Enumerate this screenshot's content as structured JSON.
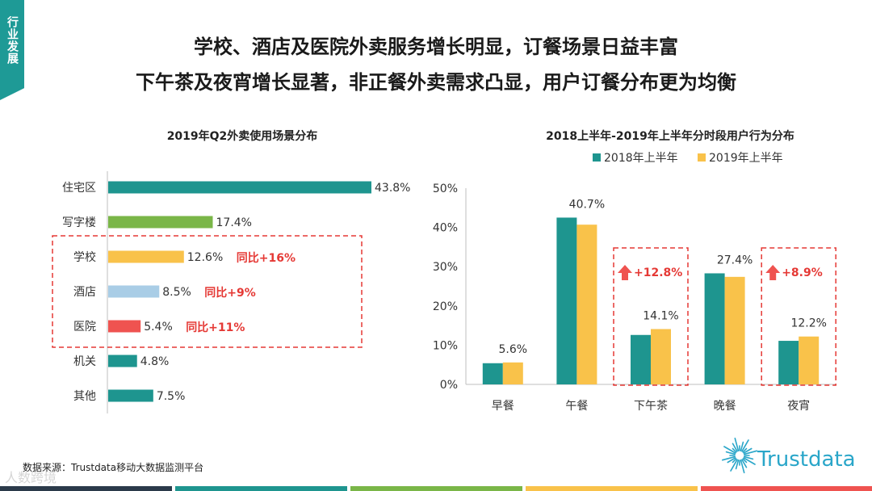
{
  "side_tag": "行业发展",
  "headline": {
    "line1": "学校、酒店及医院外卖服务增长明显，订餐场景日益丰富",
    "line2": "下午茶及夜宵增长显著，非正餐外卖需求凸显，用户订餐分布更为均衡"
  },
  "source": "数据来源：Trustdata移动大数据监测平台",
  "logo_text": "Trustdata",
  "watermark": "人数跨境",
  "colors": {
    "teal": "#1e958f",
    "gold": "#f9c24a",
    "red": "#e53935",
    "dash": "#e53935"
  },
  "chart_data": [
    {
      "type": "bar",
      "orientation": "horizontal",
      "title": "2019年Q2外卖使用场景分布",
      "categories": [
        "住宅区",
        "写字楼",
        "学校",
        "酒店",
        "医院",
        "机关",
        "其他"
      ],
      "values": [
        43.8,
        17.4,
        12.6,
        8.5,
        5.4,
        4.8,
        7.5
      ],
      "value_labels": [
        "43.8%",
        "17.4%",
        "12.6%",
        "8.5%",
        "5.4%",
        "4.8%",
        "7.5%"
      ],
      "bar_colors": [
        "#1e958f",
        "#7ab648",
        "#f9c24a",
        "#a9cde6",
        "#ef5350",
        "#1e958f",
        "#1e958f"
      ],
      "annotations": [
        {
          "category": "学校",
          "text": "同比+16%"
        },
        {
          "category": "酒店",
          "text": "同比+9%"
        },
        {
          "category": "医院",
          "text": "同比+11%"
        }
      ],
      "highlight_categories": [
        "学校",
        "酒店",
        "医院"
      ]
    },
    {
      "type": "bar",
      "title": "2018上半年-2019年上半年分时段用户行为分布",
      "categories": [
        "早餐",
        "午餐",
        "下午茶",
        "晚餐",
        "夜宵"
      ],
      "series": [
        {
          "name": "2018年上半年",
          "color": "#1e958f",
          "values": [
            5.4,
            42.5,
            12.6,
            28.3,
            11.1
          ]
        },
        {
          "name": "2019年上半年",
          "color": "#f9c24a",
          "values": [
            5.6,
            40.7,
            14.1,
            27.4,
            12.2
          ]
        }
      ],
      "value_labels": [
        "5.6%",
        "40.7%",
        "14.1%",
        "27.4%",
        "12.2%"
      ],
      "yticks": [
        "0%",
        "10%",
        "20%",
        "30%",
        "40%",
        "50%"
      ],
      "ylim": [
        0,
        50
      ],
      "legend_position": "top",
      "growth_annotations": [
        {
          "category": "下午茶",
          "text": "+12.8%"
        },
        {
          "category": "夜宵",
          "text": "+8.9%"
        }
      ]
    }
  ]
}
